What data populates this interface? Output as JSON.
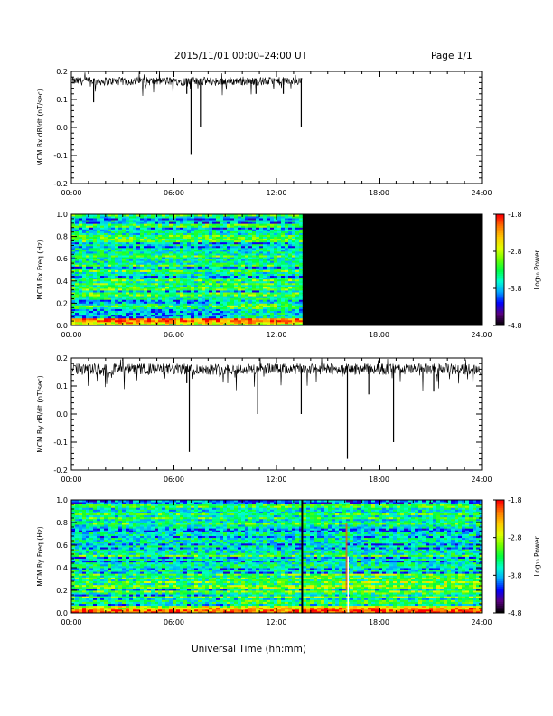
{
  "header": {
    "title": "2015/11/01   00:00–24:00 UT",
    "page": "Page 1/1"
  },
  "footer": {
    "xlabel": "Universal Time (hh:mm)"
  },
  "colors": {
    "trace": "#000000",
    "no_data": "#000000",
    "colormap": [
      "#000000",
      "#5a007f",
      "#0000ff",
      "#00a5ff",
      "#00ffd0",
      "#00ff40",
      "#70ff00",
      "#e0ff00",
      "#ffc800",
      "#ff7800",
      "#ff0000"
    ]
  },
  "chart_data": [
    {
      "type": "line",
      "ylabel": "MCM Bx dB/dt (nT/sec)",
      "xlim": [
        0,
        24
      ],
      "ylim": [
        -0.2,
        0.2
      ],
      "xticks": [
        "00:00",
        "06:00",
        "12:00",
        "18:00",
        "24:00"
      ],
      "yticks": [
        "-0.2",
        "-0.1",
        "0.0",
        "0.1",
        "0.2"
      ],
      "data_end_hour": 13.5,
      "baseline": 0.165,
      "noise_amplitude": 0.015,
      "spikes": [
        {
          "x": 1.3,
          "y": 0.09
        },
        {
          "x": 6.75,
          "y": 0.12
        },
        {
          "x": 7.0,
          "y": -0.095
        },
        {
          "x": 7.55,
          "y": 0.0
        },
        {
          "x": 10.8,
          "y": 0.12
        },
        {
          "x": 12.4,
          "y": 0.12
        },
        {
          "x": 13.45,
          "y": 0.0
        }
      ]
    },
    {
      "type": "heatmap",
      "ylabel": "MCM Bx Freq (Hz)",
      "xlim": [
        0,
        24
      ],
      "ylim": [
        0,
        1.0
      ],
      "xticks": [
        "00:00",
        "06:00",
        "12:00",
        "18:00",
        "24:00"
      ],
      "yticks": [
        "0.0",
        "0.2",
        "0.4",
        "0.6",
        "0.8",
        "1.0"
      ],
      "data_end_hour": 13.5,
      "colorbar": {
        "label": "Log₁₀ Power",
        "range": [
          -4.8,
          -1.8
        ],
        "ticks": [
          "-1.8",
          "-2.8",
          "-3.8",
          "-4.8"
        ]
      }
    },
    {
      "type": "line",
      "ylabel": "MCM By dB/dt (nT/sec)",
      "xlim": [
        0,
        24
      ],
      "ylim": [
        -0.2,
        0.2
      ],
      "xticks": [
        "00:00",
        "06:00",
        "12:00",
        "18:00",
        "24:00"
      ],
      "yticks": [
        "-0.2",
        "-0.1",
        "0.0",
        "0.1",
        "0.2"
      ],
      "data_end_hour": 24,
      "baseline": 0.16,
      "noise_amplitude": 0.02,
      "spikes": [
        {
          "x": 6.75,
          "y": 0.11
        },
        {
          "x": 6.9,
          "y": -0.135
        },
        {
          "x": 10.9,
          "y": 0.0
        },
        {
          "x": 13.45,
          "y": 0.0
        },
        {
          "x": 16.15,
          "y": -0.16
        },
        {
          "x": 18.85,
          "y": -0.1
        },
        {
          "x": 17.4,
          "y": 0.07
        },
        {
          "x": 21.2,
          "y": 0.08
        }
      ]
    },
    {
      "type": "heatmap",
      "ylabel": "MCM By Freq (Hz)",
      "xlim": [
        0,
        24
      ],
      "ylim": [
        0,
        1.0
      ],
      "xticks": [
        "00:00",
        "06:00",
        "12:00",
        "18:00",
        "24:00"
      ],
      "yticks": [
        "0.0",
        "0.2",
        "0.4",
        "0.6",
        "0.8",
        "1.0"
      ],
      "data_end_hour": 24,
      "colorbar": {
        "label": "Log₁₀ Power",
        "range": [
          -4.8,
          -1.8
        ],
        "ticks": [
          "-1.8",
          "-2.8",
          "-3.8",
          "-4.8"
        ]
      }
    }
  ]
}
